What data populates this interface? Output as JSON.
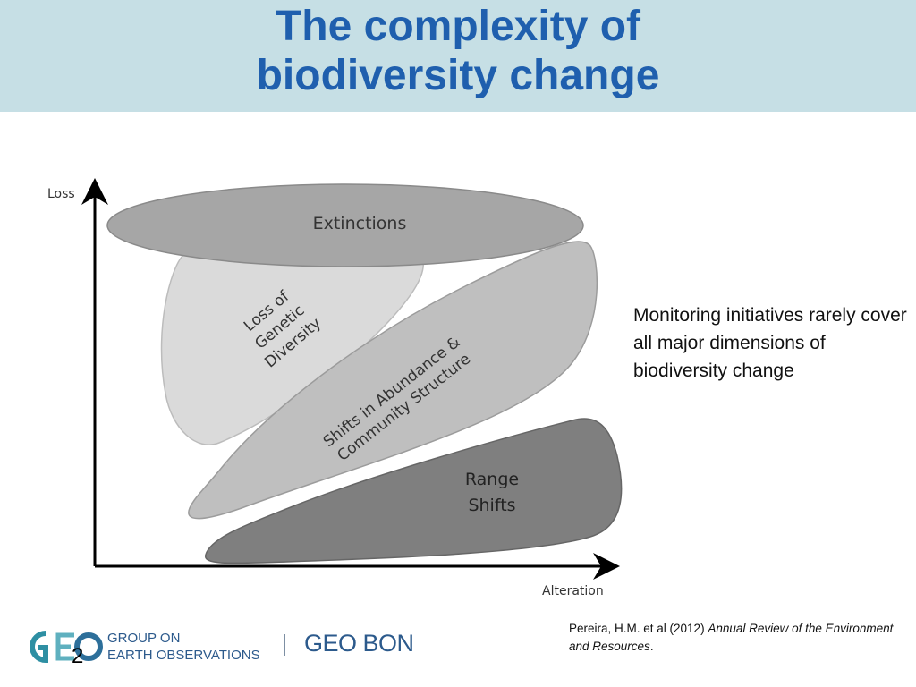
{
  "title": {
    "line1": "The complexity of",
    "line2": "biodiversity change"
  },
  "axes": {
    "y_label": "Loss",
    "x_label": "Alteration"
  },
  "shapes": {
    "extinctions": {
      "label": "Extinctions",
      "color": "#a6a6a6"
    },
    "genetic": {
      "line1": "Loss of",
      "line2": "Genetic",
      "line3": "Diversity",
      "color": "#dadada"
    },
    "abundance": {
      "line1": "Shifts in Abundance &",
      "line2": "Community Structure",
      "color": "#bfbfbf"
    },
    "range": {
      "line1": "Range",
      "line2": "Shifts",
      "color": "#7f7f7f"
    }
  },
  "side_note": "Monitoring initiatives rarely cover all major dimensions of biodiversity change",
  "citation": {
    "authors": "Pereira, H.M. et al (2012) ",
    "journal": "Annual Review of the Environment and Resources",
    "end": "."
  },
  "footer": {
    "geo_line1": "GROUP ON",
    "geo_line2": "EARTH OBSERVATIONS",
    "geobon": "GEO BON",
    "slide_number": "2"
  }
}
